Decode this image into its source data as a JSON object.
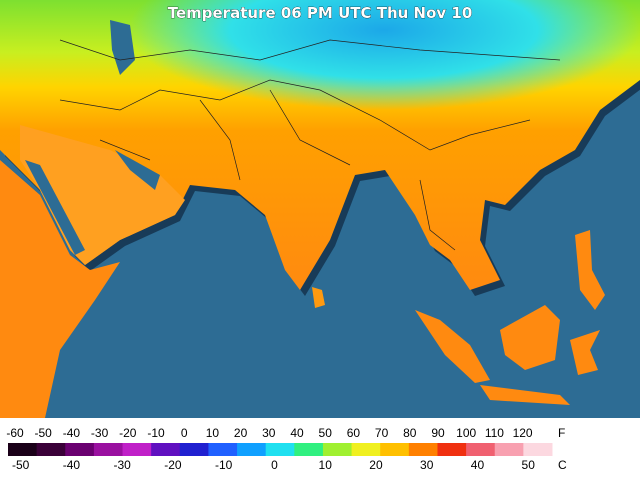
{
  "title": "Temperature 06 PM UTC Thu Nov 10",
  "legend": {
    "fahrenheit": {
      "unit": "F",
      "labels": [
        -60,
        -50,
        -40,
        -30,
        -20,
        -10,
        0,
        10,
        20,
        30,
        40,
        50,
        60,
        70,
        80,
        90,
        100,
        110,
        120
      ]
    },
    "celsius": {
      "unit": "C",
      "labels": [
        -50,
        -40,
        -30,
        -20,
        -10,
        0,
        10,
        20,
        30,
        40,
        50
      ]
    }
  }
}
